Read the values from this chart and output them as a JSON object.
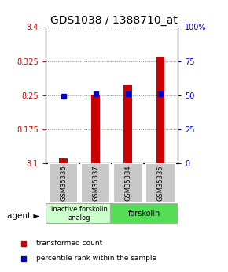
{
  "title": "GDS1038 / 1388710_at",
  "samples": [
    "GSM35336",
    "GSM35337",
    "GSM35334",
    "GSM35335"
  ],
  "bar_values": [
    8.11,
    8.252,
    8.272,
    8.335
  ],
  "percentile_values": [
    8.248,
    8.253,
    8.253,
    8.253
  ],
  "ymin": 8.1,
  "ymax": 8.4,
  "y2min": 0,
  "y2max": 100,
  "yticks": [
    8.1,
    8.175,
    8.25,
    8.325,
    8.4
  ],
  "ytick_labels": [
    "8.1",
    "8.175",
    "8.25",
    "8.325",
    "8.4"
  ],
  "y2ticks": [
    0,
    25,
    50,
    75,
    100
  ],
  "y2tick_labels": [
    "0",
    "25",
    "50",
    "75",
    "100%"
  ],
  "bar_color": "#cc0000",
  "percentile_color": "#0000cc",
  "bar_width": 0.25,
  "legend_items": [
    {
      "color": "#cc0000",
      "label": "transformed count"
    },
    {
      "color": "#0000cc",
      "label": "percentile rank within the sample"
    }
  ],
  "title_fontsize": 10,
  "tick_fontsize": 7,
  "left_tick_color": "#cc0000",
  "right_tick_color": "#0000cc",
  "grid_linestyle": ":",
  "grid_color": "#888888",
  "sample_box_color": "#c8c8c8",
  "agent_group1_color": "#ccffcc",
  "agent_group2_color": "#55dd55",
  "agent_label": "agent ►"
}
